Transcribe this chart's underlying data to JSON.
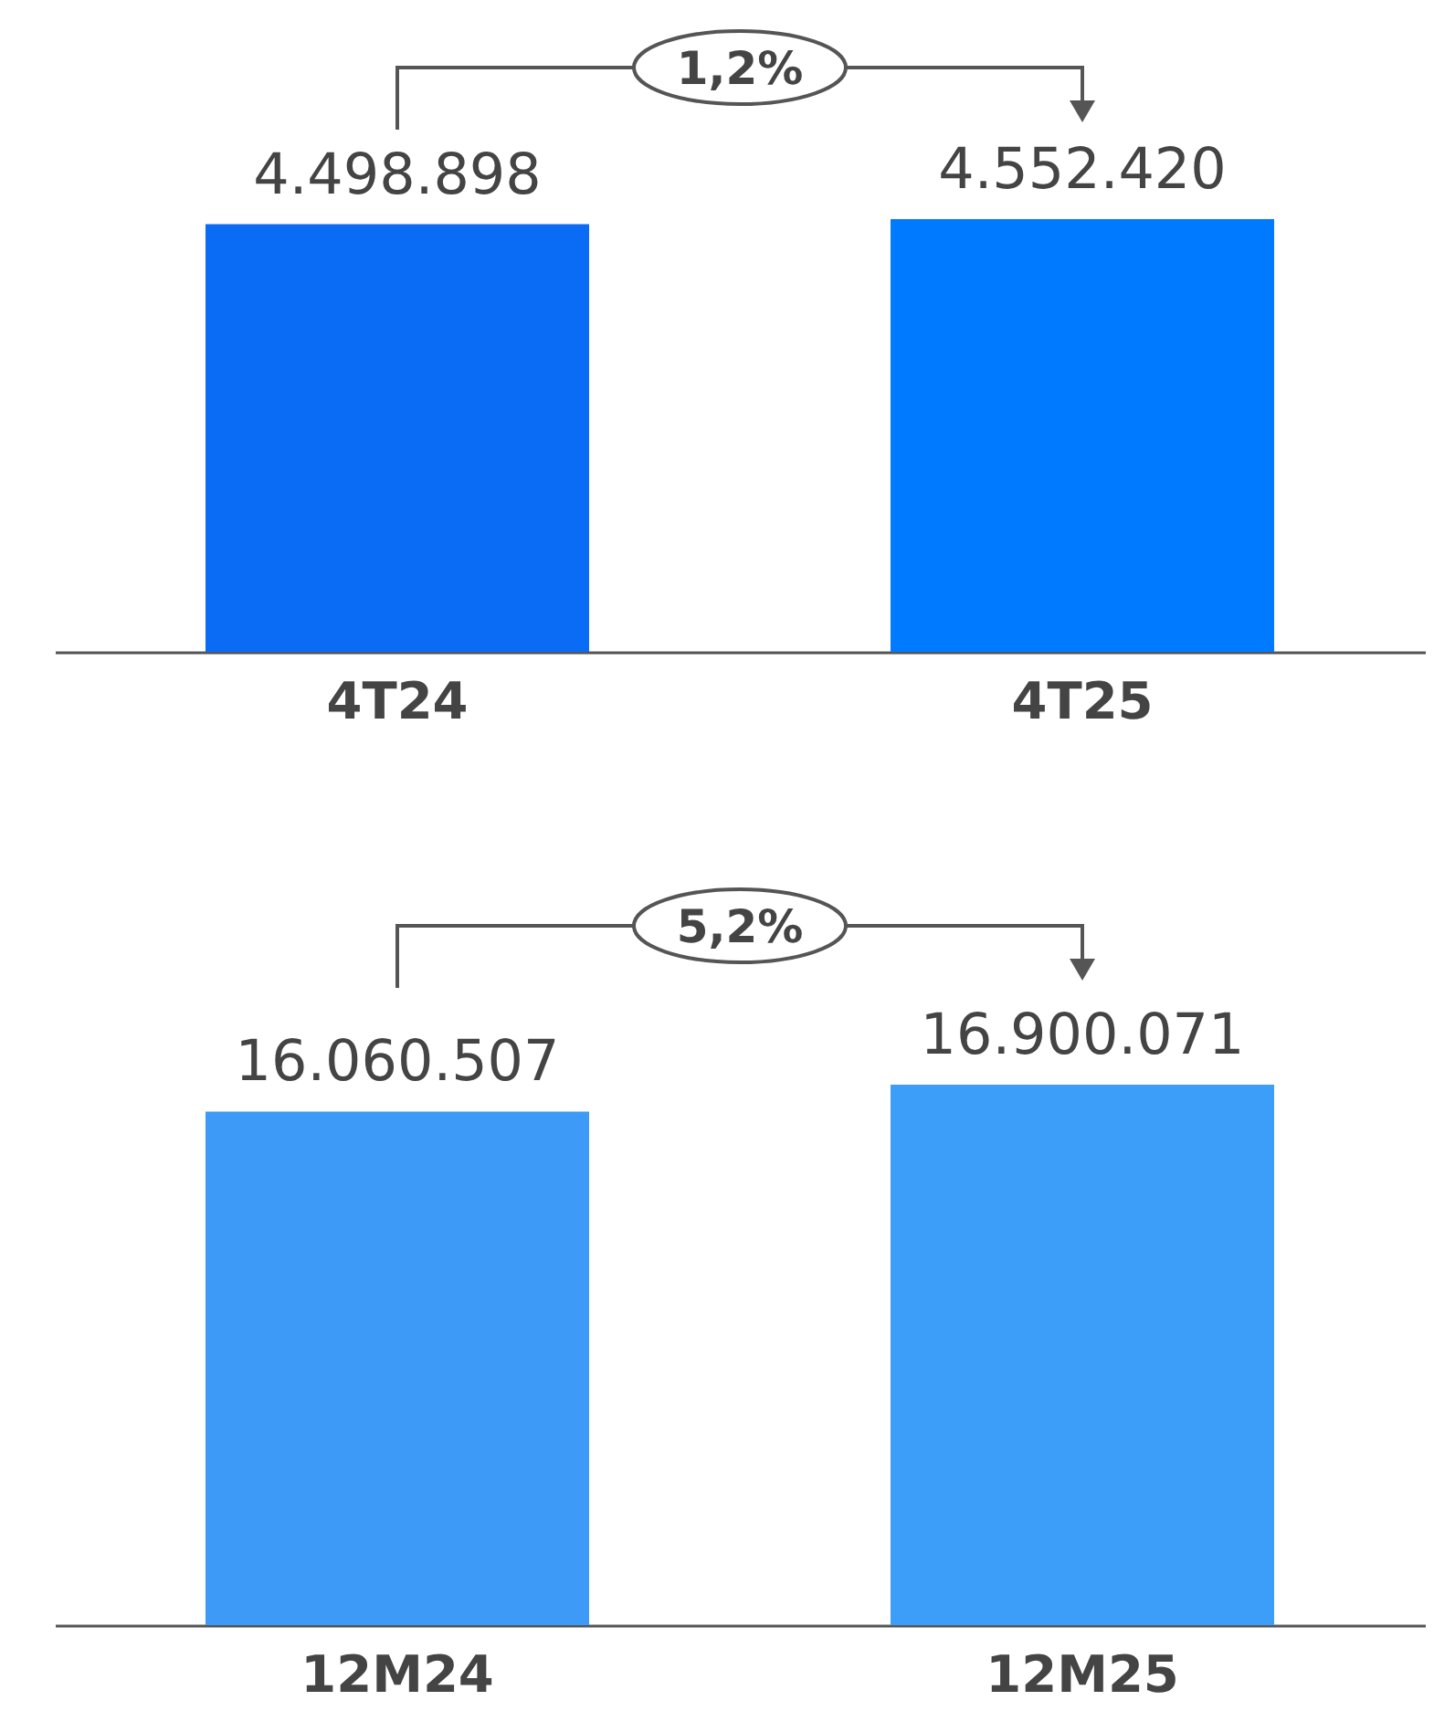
{
  "chart_data": [
    {
      "type": "bar",
      "categories": [
        "4T24",
        "4T25"
      ],
      "values": [
        4498898,
        4552420
      ],
      "colors": [
        "#0a6cf5",
        "#007bff"
      ],
      "value_labels": [
        "4.498.898",
        "4.552.420"
      ],
      "annotations": [
        "1,2%"
      ],
      "relative": false
    },
    {
      "type": "bar",
      "categories": [
        "12M24",
        "12M25"
      ],
      "values": [
        16060507,
        16900071
      ],
      "colors": [
        "#3d9bf7",
        "#3d9efa"
      ],
      "value_labels": [
        "16.060.507",
        "16.900.071"
      ],
      "annotations": [
        "5,2%"
      ],
      "relative": false
    }
  ]
}
